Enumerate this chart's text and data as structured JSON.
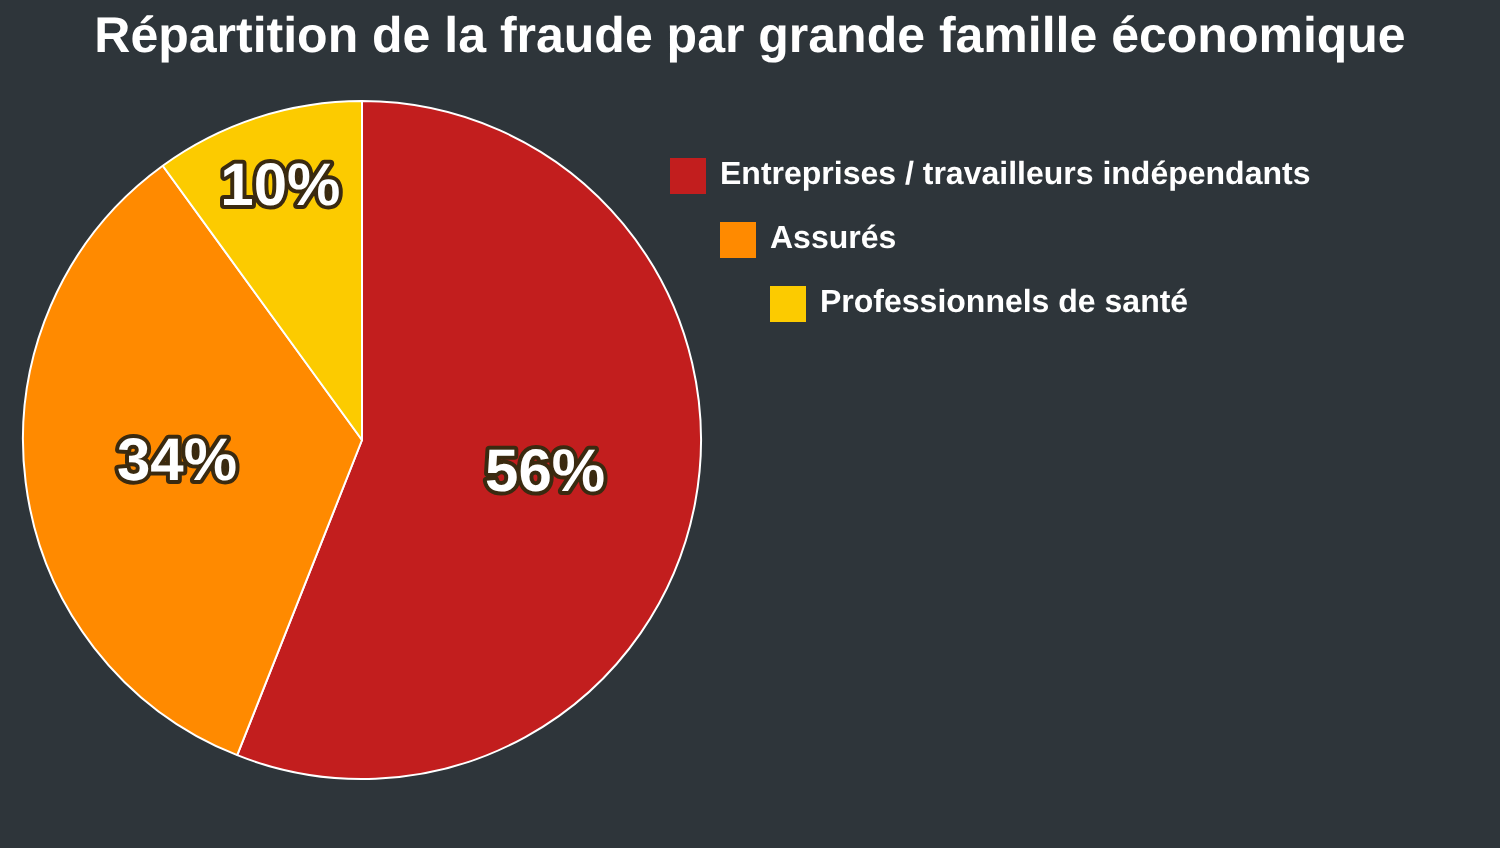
{
  "chart_data": {
    "type": "pie",
    "title": "Répartition de la fraude par grande famille économique",
    "categories": [
      "Entreprises / travailleurs indépendants",
      "Assurés",
      "Professionnels de santé"
    ],
    "values": [
      56,
      34,
      10
    ],
    "colors": [
      "#c21e1e",
      "#ff8a00",
      "#fccb00"
    ],
    "value_labels": [
      "56%",
      "34%",
      "10%"
    ],
    "legend": "top right"
  }
}
